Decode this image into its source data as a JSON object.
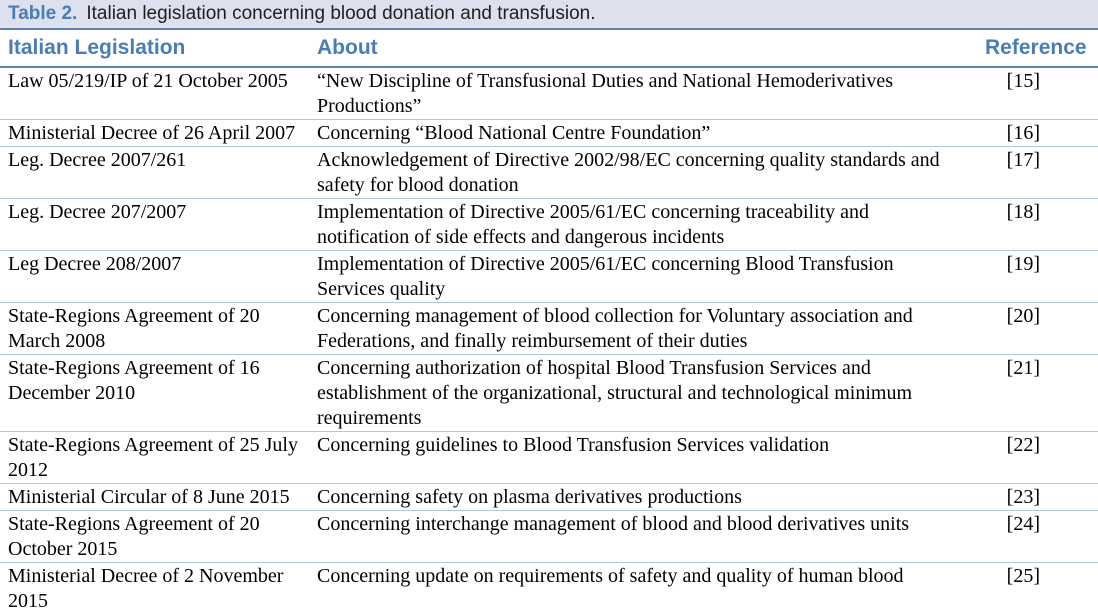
{
  "table": {
    "title_label": "Table 2.",
    "title_text": "Italian legislation concerning blood donation and transfusion.",
    "columns": {
      "legislation": "Italian Legislation",
      "about": "About",
      "reference": "Reference"
    },
    "rows": [
      {
        "legislation": "Law 05/219/IP of 21 October 2005",
        "about": "“New Discipline of Transfusional Duties and National Hemoderivatives Productions”",
        "reference": "[15]"
      },
      {
        "legislation": "Ministerial Decree of 26 April 2007",
        "about": "Concerning “Blood National Centre Foundation”",
        "reference": "[16]"
      },
      {
        "legislation": "Leg. Decree 2007/261",
        "about": "Acknowledgement of Directive 2002/98/EC concerning quality standards and safety for blood donation",
        "reference": "[17]"
      },
      {
        "legislation": "Leg. Decree 207/2007",
        "about": "Implementation of Directive 2005/61/EC concerning traceability and notification of side effects and dangerous incidents",
        "reference": "[18]"
      },
      {
        "legislation": "Leg Decree 208/2007",
        "about": "Implementation of Directive 2005/61/EC concerning Blood Transfusion Services quality",
        "reference": "[19]"
      },
      {
        "legislation": "State-Regions Agreement of 20 March 2008",
        "about": "Concerning management of blood collection for Voluntary association and Federations, and finally reimbursement of their duties",
        "reference": "[20]"
      },
      {
        "legislation": "State-Regions Agreement of 16 December 2010",
        "about": "Concerning authorization of hospital Blood Transfusion Services and establishment of the organizational, structural and technological minimum requirements",
        "reference": "[21]"
      },
      {
        "legislation": "State-Regions Agreement of 25 July 2012",
        "about": "Concerning guidelines to Blood Transfusion Services validation",
        "reference": "[22]"
      },
      {
        "legislation": "Ministerial Circular of 8 June 2015",
        "about": "Concerning safety on plasma derivatives productions",
        "reference": "[23]"
      },
      {
        "legislation": "State-Regions Agreement of 20 October 2015",
        "about": "Concerning interchange management of blood and blood derivatives units",
        "reference": "[24]"
      },
      {
        "legislation": "Ministerial Decree of 2 November 2015",
        "about": "Concerning update on requirements of safety and quality of human blood",
        "reference": "[25]"
      }
    ]
  },
  "colors": {
    "title_bar_background": "#dde1ee",
    "heading_blue": "#4a7db6",
    "rule_dark": "#5a82b4",
    "rule_light": "#b0c8e0",
    "body_text": "#000000"
  }
}
